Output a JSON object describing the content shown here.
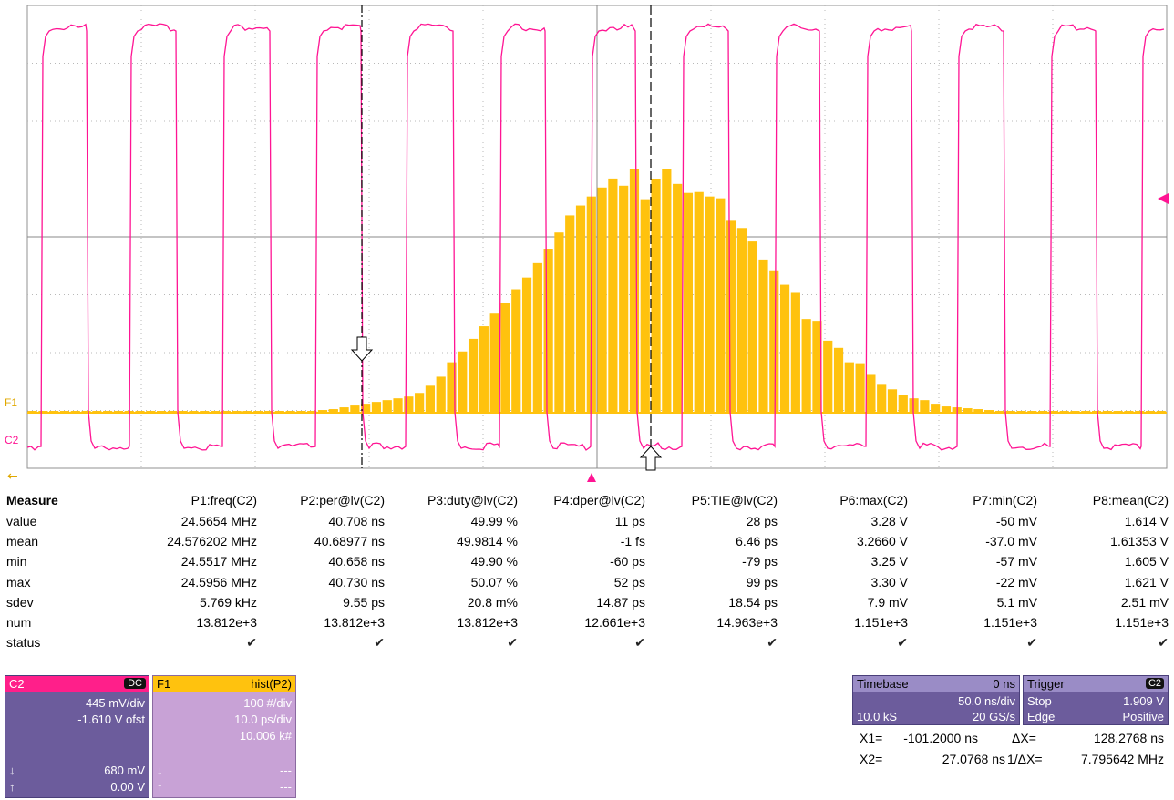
{
  "trace_labels": {
    "f1": "F1",
    "c2": "C2"
  },
  "measure": {
    "header": "Measure",
    "columns": [
      "P1:freq(C2)",
      "P2:per@lv(C2)",
      "P3:duty@lv(C2)",
      "P4:dper@lv(C2)",
      "P5:TIE@lv(C2)",
      "P6:max(C2)",
      "P7:min(C2)",
      "P8:mean(C2)"
    ],
    "rows": [
      {
        "label": "value",
        "cells": [
          "24.5654 MHz",
          "40.708 ns",
          "49.99 %",
          "11 ps",
          "28 ps",
          "3.28 V",
          "-50 mV",
          "1.614 V"
        ]
      },
      {
        "label": "mean",
        "cells": [
          "24.576202 MHz",
          "40.68977 ns",
          "49.9814 %",
          "-1 fs",
          "6.46 ps",
          "3.2660 V",
          "-37.0 mV",
          "1.61353 V"
        ]
      },
      {
        "label": "min",
        "cells": [
          "24.5517 MHz",
          "40.658 ns",
          "49.90 %",
          "-60 ps",
          "-79 ps",
          "3.25 V",
          "-57 mV",
          "1.605 V"
        ]
      },
      {
        "label": "max",
        "cells": [
          "24.5956 MHz",
          "40.730 ns",
          "50.07 %",
          "52 ps",
          "99 ps",
          "3.30 V",
          "-22 mV",
          "1.621 V"
        ]
      },
      {
        "label": "sdev",
        "cells": [
          "5.769 kHz",
          "9.55 ps",
          "20.8 m%",
          "14.87 ps",
          "18.54 ps",
          "7.9 mV",
          "5.1 mV",
          "2.51 mV"
        ]
      },
      {
        "label": "num",
        "cells": [
          "13.812e+3",
          "13.812e+3",
          "13.812e+3",
          "12.661e+3",
          "14.963e+3",
          "1.151e+3",
          "1.151e+3",
          "1.151e+3"
        ]
      }
    ],
    "status_label": "status",
    "status_mark": "✔"
  },
  "c2": {
    "name": "C2",
    "coupling": "DC",
    "vdiv": "445 mV/div",
    "offset": "-1.610 V ofst",
    "level1": "680 mV",
    "level2": "0.00 V",
    "down": "↓",
    "up": "↑"
  },
  "f1": {
    "name": "F1",
    "func": "hist(P2)",
    "ydiv": "100 #/div",
    "xdiv": "10.0 ps/div",
    "count": "10.006 k#",
    "down": "↓",
    "up": "↑",
    "dash1": "---",
    "dash2": "---"
  },
  "timebase": {
    "label": "Timebase",
    "delay": "0 ns",
    "tdiv": "50.0 ns/div",
    "samples": "10.0 kS",
    "rate": "20 GS/s"
  },
  "trigger": {
    "label": "Trigger",
    "source": "C2",
    "mode": "Stop",
    "level": "1.909 V",
    "type": "Edge",
    "slope": "Positive"
  },
  "cursors": {
    "x1_label": "X1=",
    "x1": "-101.2000 ns",
    "dx_label": "ΔX=",
    "dx": "128.2768 ns",
    "x2_label": "X2=",
    "x2": "27.0768 ns",
    "inv_label": "1/ΔX=",
    "inv": "7.795642 MHz"
  },
  "colors": {
    "c2": "#ff1493",
    "f1": "#ffc20e",
    "grid": "#b0b0b0"
  },
  "icons": {
    "cursor1": "arrow-down-cursor-icon",
    "cursor2": "arrow-up-cursor-icon",
    "trigger_pos": "trigger-position-icon",
    "trigger_level": "trigger-level-icon"
  },
  "histogram_counts": [
    2,
    2,
    2,
    2,
    2,
    2,
    2,
    2,
    2,
    2,
    2,
    2,
    2,
    2,
    2,
    2,
    2,
    2,
    2,
    2,
    2,
    2,
    2,
    2,
    2,
    2,
    2,
    3,
    4,
    6,
    8,
    10,
    12,
    14,
    16,
    18,
    22,
    30,
    40,
    56,
    68,
    82,
    96,
    110,
    122,
    137,
    150,
    166,
    182,
    200,
    219,
    230,
    240,
    250,
    260,
    252,
    270,
    237,
    259,
    270,
    254,
    244,
    245,
    240,
    238,
    214,
    205,
    190,
    170,
    158,
    142,
    133,
    104,
    102,
    80,
    72,
    56,
    55,
    42,
    32,
    26,
    20,
    16,
    14,
    10,
    7,
    6,
    5,
    4,
    3,
    2,
    2,
    2,
    2,
    2,
    2,
    2,
    2,
    2,
    2,
    2,
    2,
    2,
    2,
    2,
    2
  ]
}
